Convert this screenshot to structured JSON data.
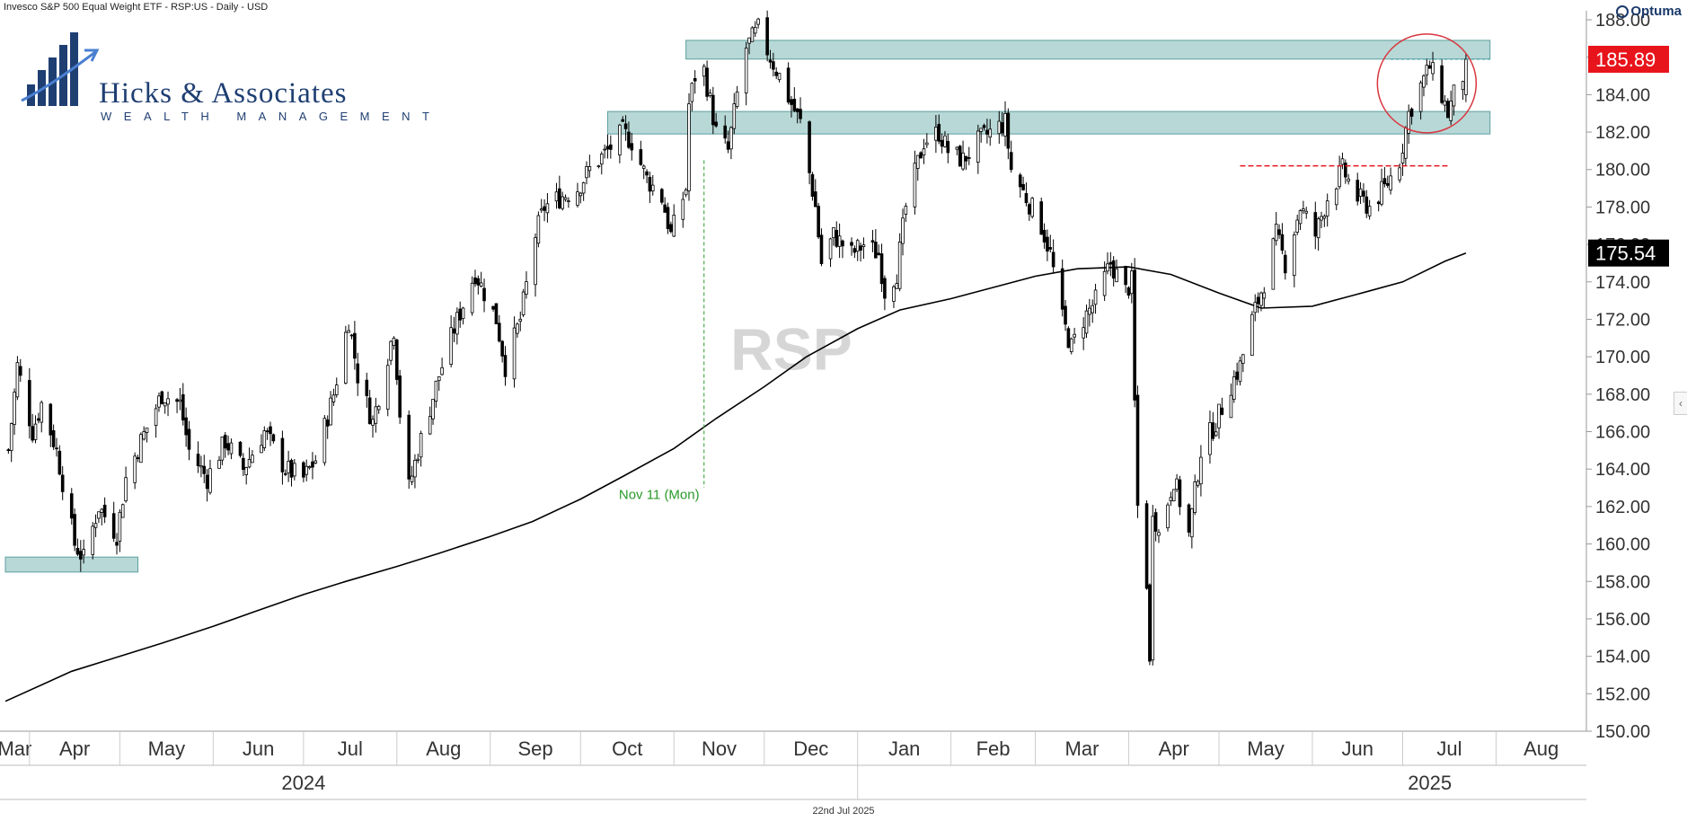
{
  "header": {
    "title": "Invesco S&P 500 Equal Weight ETF - RSP:US - Daily - USD"
  },
  "brand": {
    "name": "Optuma"
  },
  "logo": {
    "name": "Hicks & Associates",
    "subtitle": "Wealth Management"
  },
  "watermark": "RSP",
  "footer": {
    "date": "22nd Jul 2025"
  },
  "colors": {
    "up": "#000000",
    "down": "#000000",
    "zone_fill": "#b7d8d6",
    "zone_stroke": "#5e9ea0",
    "last_price_bg": "#e8141b",
    "ma_label_bg": "#000000",
    "annotation_green": "#2a9a2a",
    "resistance_red": "#e8141b",
    "circle": "#d9363e"
  },
  "chart_data": {
    "type": "candlestick",
    "title": "Invesco S&P 500 Equal Weight ETF - RSP:US - Daily - USD",
    "ylim": [
      150,
      188
    ],
    "y_ticks": [
      "150.00",
      "152.00",
      "154.00",
      "156.00",
      "158.00",
      "160.00",
      "162.00",
      "164.00",
      "166.00",
      "168.00",
      "170.00",
      "172.00",
      "174.00",
      "176.00",
      "178.00",
      "180.00",
      "182.00",
      "184.00",
      "186.00",
      "188.00"
    ],
    "x_start": "2024-03-24",
    "x_end": "2025-08-31",
    "months": [
      {
        "label": "Mar",
        "date": "2024-03-01"
      },
      {
        "label": "Apr",
        "date": "2024-04-01"
      },
      {
        "label": "May",
        "date": "2024-05-01"
      },
      {
        "label": "Jun",
        "date": "2024-06-01"
      },
      {
        "label": "Jul",
        "date": "2024-07-01"
      },
      {
        "label": "Aug",
        "date": "2024-08-01"
      },
      {
        "label": "Sep",
        "date": "2024-09-01"
      },
      {
        "label": "Oct",
        "date": "2024-10-01"
      },
      {
        "label": "Nov",
        "date": "2024-11-01"
      },
      {
        "label": "Dec",
        "date": "2024-12-01"
      },
      {
        "label": "Jan",
        "date": "2025-01-01"
      },
      {
        "label": "Feb",
        "date": "2025-02-01"
      },
      {
        "label": "Mar",
        "date": "2025-03-01"
      },
      {
        "label": "Apr",
        "date": "2025-04-01"
      },
      {
        "label": "May",
        "date": "2025-05-01"
      },
      {
        "label": "Jun",
        "date": "2025-06-01"
      },
      {
        "label": "Jul",
        "date": "2025-07-01"
      },
      {
        "label": "Aug",
        "date": "2025-08-01"
      }
    ],
    "years": [
      {
        "label": "2024",
        "date": "2024-07-01"
      },
      {
        "label": "2025",
        "date": "2025-07-10"
      }
    ],
    "year_divider": "2025-01-01",
    "price_path": [
      [
        "2024-03-25",
        165
      ],
      [
        "2024-03-28",
        169.5
      ],
      [
        "2024-04-02",
        166
      ],
      [
        "2024-04-05",
        167.5
      ],
      [
        "2024-04-10",
        165
      ],
      [
        "2024-04-16",
        160
      ],
      [
        "2024-04-19",
        159.2
      ],
      [
        "2024-04-24",
        162
      ],
      [
        "2024-04-30",
        160.5
      ],
      [
        "2024-05-03",
        163.5
      ],
      [
        "2024-05-08",
        165.5
      ],
      [
        "2024-05-15",
        168
      ],
      [
        "2024-05-21",
        167.5
      ],
      [
        "2024-05-24",
        165
      ],
      [
        "2024-05-30",
        163.5
      ],
      [
        "2024-06-05",
        165.5
      ],
      [
        "2024-06-11",
        164
      ],
      [
        "2024-06-18",
        166
      ],
      [
        "2024-06-25",
        164
      ],
      [
        "2024-07-01",
        163.5
      ],
      [
        "2024-07-05",
        164.5
      ],
      [
        "2024-07-11",
        168
      ],
      [
        "2024-07-16",
        172
      ],
      [
        "2024-07-19",
        169
      ],
      [
        "2024-07-24",
        166.5
      ],
      [
        "2024-07-31",
        171.5
      ],
      [
        "2024-08-02",
        167
      ],
      [
        "2024-08-05",
        163
      ],
      [
        "2024-08-08",
        165
      ],
      [
        "2024-08-15",
        169
      ],
      [
        "2024-08-20",
        171.5
      ],
      [
        "2024-08-27",
        174.5
      ],
      [
        "2024-09-03",
        172
      ],
      [
        "2024-09-06",
        169.5
      ],
      [
        "2024-09-11",
        172
      ],
      [
        "2024-09-16",
        176.5
      ],
      [
        "2024-09-19",
        178
      ],
      [
        "2024-09-24",
        178.5
      ],
      [
        "2024-09-30",
        179
      ],
      [
        "2024-10-04",
        180
      ],
      [
        "2024-10-10",
        181
      ],
      [
        "2024-10-15",
        182
      ],
      [
        "2024-10-18",
        181.5
      ],
      [
        "2024-10-23",
        179.5
      ],
      [
        "2024-10-28",
        178.5
      ],
      [
        "2024-10-31",
        176.5
      ],
      [
        "2024-11-05",
        179
      ],
      [
        "2024-11-06",
        183.5
      ],
      [
        "2024-11-08",
        185
      ],
      [
        "2024-11-11",
        185.3
      ],
      [
        "2024-11-15",
        182
      ],
      [
        "2024-11-19",
        181
      ],
      [
        "2024-11-22",
        184
      ],
      [
        "2024-11-25",
        186.5
      ],
      [
        "2024-11-29",
        187.5
      ],
      [
        "2024-12-03",
        186
      ],
      [
        "2024-12-06",
        185
      ],
      [
        "2024-12-10",
        183.5
      ],
      [
        "2024-12-13",
        182.5
      ],
      [
        "2024-12-18",
        178
      ],
      [
        "2024-12-20",
        175
      ],
      [
        "2024-12-24",
        176.5
      ],
      [
        "2024-12-30",
        175.5
      ],
      [
        "2025-01-03",
        176
      ],
      [
        "2025-01-08",
        175.5
      ],
      [
        "2025-01-10",
        173.5
      ],
      [
        "2025-01-14",
        174.5
      ],
      [
        "2025-01-17",
        178
      ],
      [
        "2025-01-23",
        181.5
      ],
      [
        "2025-01-28",
        182
      ],
      [
        "2025-01-31",
        181
      ],
      [
        "2025-02-05",
        180.5
      ],
      [
        "2025-02-10",
        181.5
      ],
      [
        "2025-02-14",
        182
      ],
      [
        "2025-02-19",
        182.5
      ],
      [
        "2025-02-21",
        180
      ],
      [
        "2025-02-26",
        178.5
      ],
      [
        "2025-03-03",
        177
      ],
      [
        "2025-03-06",
        175.5
      ],
      [
        "2025-03-10",
        172
      ],
      [
        "2025-03-13",
        170.5
      ],
      [
        "2025-03-17",
        172
      ],
      [
        "2025-03-21",
        173
      ],
      [
        "2025-03-26",
        175
      ],
      [
        "2025-03-31",
        173.5
      ],
      [
        "2025-04-02",
        174
      ],
      [
        "2025-04-03",
        167.5
      ],
      [
        "2025-04-04",
        162
      ],
      [
        "2025-04-07",
        158
      ],
      [
        "2025-04-08",
        153.5
      ],
      [
        "2025-04-09",
        162
      ],
      [
        "2025-04-11",
        160.5
      ],
      [
        "2025-04-16",
        163.5
      ],
      [
        "2025-04-21",
        160.5
      ],
      [
        "2025-04-25",
        165
      ],
      [
        "2025-04-30",
        166.5
      ],
      [
        "2025-05-05",
        168.5
      ],
      [
        "2025-05-08",
        169.5
      ],
      [
        "2025-05-12",
        172
      ],
      [
        "2025-05-16",
        174
      ],
      [
        "2025-05-20",
        176.5
      ],
      [
        "2025-05-23",
        175
      ],
      [
        "2025-05-28",
        178
      ],
      [
        "2025-06-02",
        176.5
      ],
      [
        "2025-06-06",
        178.5
      ],
      [
        "2025-06-11",
        180
      ],
      [
        "2025-06-16",
        178.5
      ],
      [
        "2025-06-20",
        178
      ],
      [
        "2025-06-25",
        179
      ],
      [
        "2025-06-30",
        180.5
      ],
      [
        "2025-07-03",
        183
      ],
      [
        "2025-07-07",
        184.5
      ],
      [
        "2025-07-10",
        185.5
      ],
      [
        "2025-07-14",
        184
      ],
      [
        "2025-07-16",
        183
      ],
      [
        "2025-07-18",
        184
      ],
      [
        "2025-07-21",
        185
      ],
      [
        "2025-07-22",
        185.89
      ]
    ],
    "ma_path": [
      [
        "2024-03-24",
        151.6
      ],
      [
        "2024-04-15",
        153.2
      ],
      [
        "2024-05-01",
        154.0
      ],
      [
        "2024-05-15",
        154.7
      ],
      [
        "2024-06-01",
        155.6
      ],
      [
        "2024-06-15",
        156.4
      ],
      [
        "2024-07-01",
        157.3
      ],
      [
        "2024-07-15",
        158.0
      ],
      [
        "2024-08-01",
        158.8
      ],
      [
        "2024-08-15",
        159.5
      ],
      [
        "2024-09-01",
        160.4
      ],
      [
        "2024-09-15",
        161.2
      ],
      [
        "2024-10-01",
        162.4
      ],
      [
        "2024-10-15",
        163.6
      ],
      [
        "2024-11-01",
        165.1
      ],
      [
        "2024-11-15",
        166.7
      ],
      [
        "2024-12-01",
        168.4
      ],
      [
        "2024-12-15",
        170.0
      ],
      [
        "2025-01-01",
        171.5
      ],
      [
        "2025-01-15",
        172.5
      ],
      [
        "2025-02-01",
        173.1
      ],
      [
        "2025-02-15",
        173.7
      ],
      [
        "2025-03-01",
        174.3
      ],
      [
        "2025-03-15",
        174.7
      ],
      [
        "2025-04-01",
        174.8
      ],
      [
        "2025-04-15",
        174.4
      ],
      [
        "2025-05-01",
        173.4
      ],
      [
        "2025-05-15",
        172.6
      ],
      [
        "2025-06-01",
        172.7
      ],
      [
        "2025-06-15",
        173.3
      ],
      [
        "2025-07-01",
        174.0
      ],
      [
        "2025-07-15",
        175.1
      ],
      [
        "2025-07-22",
        175.54
      ]
    ],
    "zones": [
      {
        "from": "2024-11-05",
        "to": "2025-07-30",
        "low": 185.9,
        "high": 186.9
      },
      {
        "from": "2024-10-10",
        "to": "2025-07-30",
        "low": 181.9,
        "high": 183.1
      },
      {
        "from": "2024-03-24",
        "to": "2024-05-07",
        "low": 158.5,
        "high": 159.3
      }
    ],
    "resistance_line": {
      "from": "2025-05-08",
      "to": "2025-07-16",
      "value": 180.2
    },
    "dashed_last_line": {
      "from": "2025-06-27",
      "to": "2025-07-30",
      "value": 185.89
    },
    "vline": {
      "date": "2024-11-11",
      "top": 180.5,
      "bottom": 163.0
    },
    "annotation": {
      "text": "Nov 11 (Mon)",
      "date": "2024-11-11",
      "value": 162.4
    },
    "circle": {
      "date": "2025-07-09",
      "value": 184.6
    },
    "last_price": {
      "value": 185.89,
      "label": "185.89"
    },
    "ma_value": {
      "value": 175.54,
      "label": "175.54"
    }
  }
}
